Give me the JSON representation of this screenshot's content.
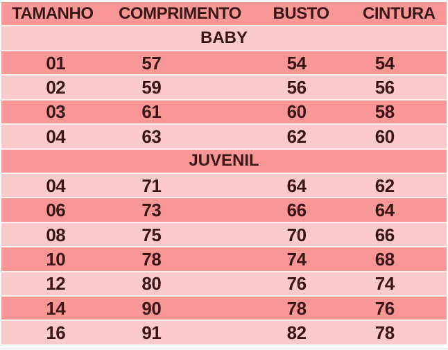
{
  "table": {
    "columns": [
      "TAMANHO",
      "COMPRIMENTO",
      "BUSTO",
      "CINTURA"
    ],
    "sections": [
      {
        "label": "BABY",
        "rows": [
          [
            "01",
            "57",
            "54",
            "54"
          ],
          [
            "02",
            "59",
            "56",
            "56"
          ],
          [
            "03",
            "61",
            "60",
            "58"
          ],
          [
            "04",
            "63",
            "62",
            "60"
          ]
        ]
      },
      {
        "label": "JUVENIL",
        "rows": [
          [
            "04",
            "71",
            "64",
            "62"
          ],
          [
            "06",
            "73",
            "66",
            "64"
          ],
          [
            "08",
            "75",
            "70",
            "66"
          ],
          [
            "10",
            "78",
            "74",
            "68"
          ],
          [
            "12",
            "80",
            "76",
            "74"
          ],
          [
            "14",
            "90",
            "78",
            "76"
          ],
          [
            "16",
            "91",
            "82",
            "78"
          ]
        ]
      }
    ]
  },
  "colors": {
    "row_dark": "#F99797",
    "row_light": "#FCCACA",
    "text": "#3A1616",
    "background": "#FFFFFF"
  }
}
